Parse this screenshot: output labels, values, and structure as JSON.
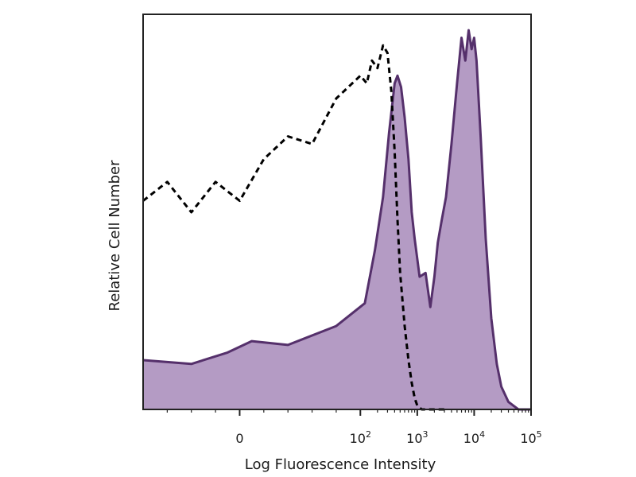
{
  "chart_data": {
    "type": "area",
    "xlabel": "Log Fluorescence Intensity",
    "ylabel": "Relative Cell Number",
    "x_scale": "biexponential",
    "xlim": [
      -80,
      100000
    ],
    "ylim": [
      0,
      1
    ],
    "grid": false,
    "legend": "none",
    "ticks": [
      {
        "value": 0,
        "base": "0",
        "exp": ""
      },
      {
        "value": 100,
        "base": "10",
        "exp": "2"
      },
      {
        "value": 1000,
        "base": "10",
        "exp": "3"
      },
      {
        "value": 10000,
        "base": "10",
        "exp": "4"
      },
      {
        "value": 100000,
        "base": "10",
        "exp": "5"
      }
    ],
    "series": [
      {
        "style": "filled",
        "fill_color": "#b49bc4",
        "stroke_color": "#55306b",
        "x": [
          -80,
          -40,
          -10,
          10,
          40,
          80,
          120,
          180,
          250,
          320,
          400,
          450,
          520,
          600,
          700,
          800,
          900,
          1100,
          1400,
          1700,
          2000,
          2300,
          2700,
          3200,
          4000,
          5000,
          6000,
          7000,
          8000,
          9000,
          10000,
          11000,
          13000,
          16000,
          20000,
          25000,
          30000,
          40000,
          60000,
          100000
        ],
        "y": [
          0.13,
          0.12,
          0.15,
          0.18,
          0.17,
          0.22,
          0.28,
          0.42,
          0.56,
          0.73,
          0.86,
          0.88,
          0.85,
          0.77,
          0.66,
          0.52,
          0.45,
          0.35,
          0.36,
          0.27,
          0.35,
          0.44,
          0.5,
          0.56,
          0.7,
          0.86,
          0.98,
          0.92,
          1.0,
          0.95,
          0.98,
          0.92,
          0.72,
          0.45,
          0.24,
          0.12,
          0.06,
          0.02,
          0.0,
          0.0
        ]
      },
      {
        "style": "dashed",
        "stroke_color": "#000000",
        "x": [
          -80,
          -60,
          -40,
          -20,
          0,
          20,
          40,
          60,
          80,
          100,
          130,
          160,
          200,
          250,
          300,
          350,
          400,
          450,
          500,
          600,
          700,
          800,
          900,
          1000,
          1200,
          1500,
          2000,
          3000
        ],
        "y": [
          0.55,
          0.6,
          0.52,
          0.6,
          0.55,
          0.66,
          0.72,
          0.7,
          0.82,
          0.88,
          0.86,
          0.92,
          0.9,
          0.96,
          0.94,
          0.84,
          0.68,
          0.5,
          0.36,
          0.22,
          0.13,
          0.07,
          0.03,
          0.01,
          0.0,
          0.0,
          0.0,
          0.0
        ]
      }
    ]
  }
}
